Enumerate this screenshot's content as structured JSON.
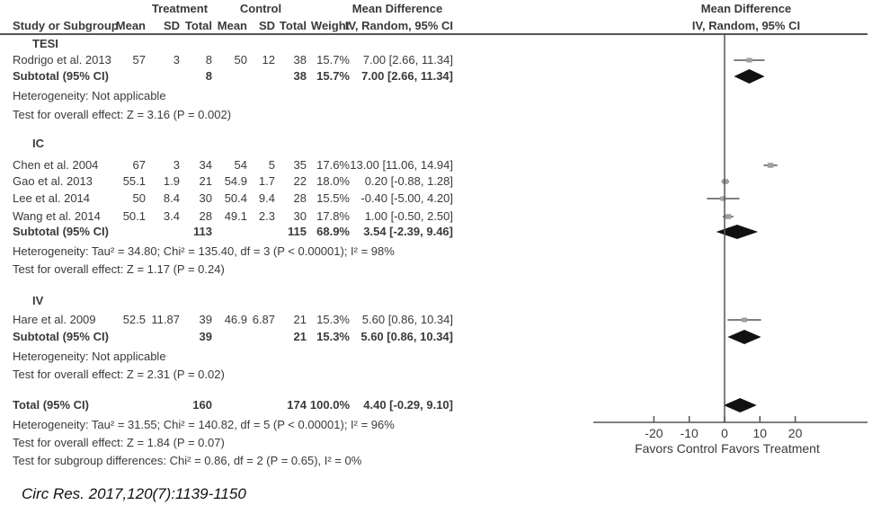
{
  "header": {
    "treatment": "Treatment",
    "control": "Control",
    "md_left": "Mean Difference",
    "md_left_sub": "IV, Random, 95% CI",
    "md_right": "Mean Difference",
    "md_right_sub": "IV, Random, 95% CI",
    "study": "Study or Subgroup",
    "t_mean": "Mean",
    "t_sd": "SD",
    "t_total": "Total",
    "c_mean": "Mean",
    "c_sd": "SD",
    "c_total": "Total",
    "weight": "Weight"
  },
  "rows": [
    {
      "type": "group",
      "label": "TESI"
    },
    {
      "type": "study",
      "label": "Rodrigo et al. 2013",
      "t_mean": "57",
      "t_sd": "3",
      "t_total": "8",
      "c_mean": "50",
      "c_sd": "12",
      "c_total": "38",
      "weight": "15.7%",
      "ci": "7.00 [2.66, 11.34]"
    },
    {
      "type": "subtotal",
      "label": "Subtotal (95% CI)",
      "t_total": "8",
      "c_total": "38",
      "weight": "15.7%",
      "ci": "7.00 [2.66, 11.34]"
    },
    {
      "type": "text",
      "label": "Heterogeneity: Not applicable"
    },
    {
      "type": "text",
      "label": "Test for overall effect: Z = 3.16 (P = 0.002)"
    },
    {
      "type": "group",
      "label": "IC"
    },
    {
      "type": "study",
      "label": "Chen et al. 2004",
      "t_mean": "67",
      "t_sd": "3",
      "t_total": "34",
      "c_mean": "54",
      "c_sd": "5",
      "c_total": "35",
      "weight": "17.6%",
      "ci": "13.00 [11.06, 14.94]"
    },
    {
      "type": "study",
      "label": "Gao et al. 2013",
      "t_mean": "55.1",
      "t_sd": "1.9",
      "t_total": "21",
      "c_mean": "54.9",
      "c_sd": "1.7",
      "c_total": "22",
      "weight": "18.0%",
      "ci": "0.20 [-0.88, 1.28]"
    },
    {
      "type": "study",
      "label": "Lee et al. 2014",
      "t_mean": "50",
      "t_sd": "8.4",
      "t_total": "30",
      "c_mean": "50.4",
      "c_sd": "9.4",
      "c_total": "28",
      "weight": "15.5%",
      "ci": "-0.40 [-5.00, 4.20]"
    },
    {
      "type": "study",
      "label": "Wang et al. 2014",
      "t_mean": "50.1",
      "t_sd": "3.4",
      "t_total": "28",
      "c_mean": "49.1",
      "c_sd": "2.3",
      "c_total": "30",
      "weight": "17.8%",
      "ci": "1.00 [-0.50, 2.50]"
    },
    {
      "type": "subtotal",
      "label": "Subtotal (95% CI)",
      "t_total": "113",
      "c_total": "115",
      "weight": "68.9%",
      "ci": "3.54 [-2.39, 9.46]"
    },
    {
      "type": "text",
      "label": "Heterogeneity: Tau² = 34.80; Chi² = 135.40, df = 3 (P < 0.00001); I² = 98%"
    },
    {
      "type": "text",
      "label": "Test for overall effect: Z = 1.17 (P = 0.24)"
    },
    {
      "type": "group",
      "label": "IV"
    },
    {
      "type": "study",
      "label": "Hare et al. 2009",
      "t_mean": "52.5",
      "t_sd": "11.87",
      "t_total": "39",
      "c_mean": "46.9",
      "c_sd": "6.87",
      "c_total": "21",
      "weight": "15.3%",
      "ci": "5.60 [0.86, 10.34]"
    },
    {
      "type": "subtotal",
      "label": "Subtotal (95% CI)",
      "t_total": "39",
      "c_total": "21",
      "weight": "15.3%",
      "ci": "5.60 [0.86, 10.34]"
    },
    {
      "type": "text",
      "label": "Heterogeneity: Not applicable"
    },
    {
      "type": "text",
      "label": "Test for overall effect: Z = 2.31 (P = 0.02)"
    },
    {
      "type": "subtotal",
      "label": "Total (95% CI)",
      "t_total": "160",
      "c_total": "174",
      "weight": "100.0%",
      "ci": "4.40 [-0.29, 9.10]"
    },
    {
      "type": "text",
      "label": "Heterogeneity: Tau² = 31.55; Chi² = 140.82, df = 5 (P < 0.00001); I² = 96%"
    },
    {
      "type": "text",
      "label": "Test for overall effect: Z = 1.84 (P = 0.07)"
    },
    {
      "type": "text",
      "label": "Test for subgroup differences: Chi² = 0.86, df = 2 (P = 0.65), I² = 0%"
    }
  ],
  "chart_data": {
    "type": "forest",
    "xlim": [
      -20,
      20
    ],
    "xticks": [
      "-20",
      "-10",
      "0",
      "10",
      "20"
    ],
    "xlabel_left": "Favors Control",
    "xlabel_right": "Favors Treatment",
    "studies": [
      {
        "name": "Rodrigo et al. 2013",
        "md": 7.0,
        "lo": 2.66,
        "hi": 11.34,
        "weight": 15.7
      },
      {
        "name": "Chen et al. 2004",
        "md": 13.0,
        "lo": 11.06,
        "hi": 14.94,
        "weight": 17.6
      },
      {
        "name": "Gao et al. 2013",
        "md": 0.2,
        "lo": -0.88,
        "hi": 1.28,
        "weight": 18.0
      },
      {
        "name": "Lee et al. 2014",
        "md": -0.4,
        "lo": -5.0,
        "hi": 4.2,
        "weight": 15.5
      },
      {
        "name": "Wang et al. 2014",
        "md": 1.0,
        "lo": -0.5,
        "hi": 2.5,
        "weight": 17.8
      },
      {
        "name": "Hare et al. 2009",
        "md": 5.6,
        "lo": 0.86,
        "hi": 10.34,
        "weight": 15.3
      }
    ],
    "pooled": [
      {
        "name": "TESI subtotal",
        "md": 7.0,
        "lo": 2.66,
        "hi": 11.34
      },
      {
        "name": "IC subtotal",
        "md": 3.54,
        "lo": -2.39,
        "hi": 9.46
      },
      {
        "name": "IV subtotal",
        "md": 5.6,
        "lo": 0.86,
        "hi": 10.34
      },
      {
        "name": "Total",
        "md": 4.4,
        "lo": -0.29,
        "hi": 9.1
      }
    ],
    "colors": {
      "study_marker": "#a0a0a0",
      "diamond": "#111111",
      "lines": "#555555"
    }
  },
  "citation": "Circ Res. 2017,120(7):1139-1150"
}
